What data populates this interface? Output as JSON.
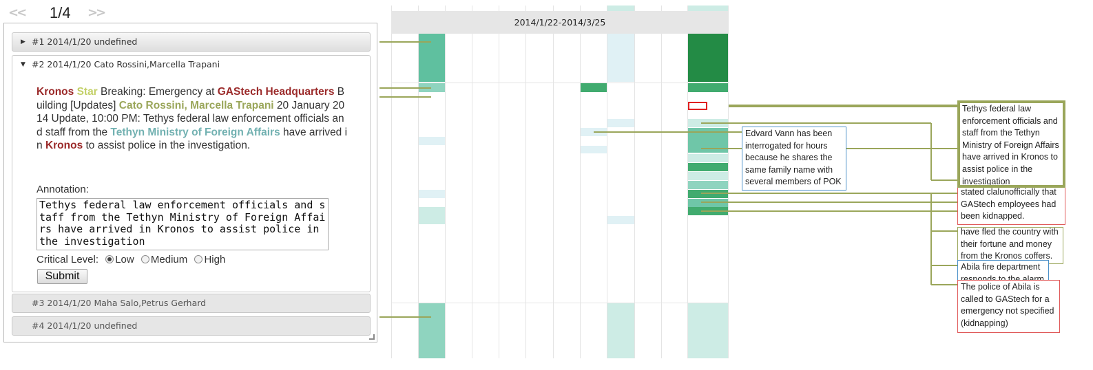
{
  "pager": {
    "prev": "<<",
    "page": "1/4",
    "next": ">>"
  },
  "accordion": {
    "items": [
      {
        "label": "#1 2014/1/20 undefined"
      },
      {
        "label": "#2 2014/1/20 Cato Rossini,Marcella Trapani"
      },
      {
        "label": "#3 2014/1/20 Maha Salo,Petrus Gerhard"
      },
      {
        "label": "#4 2014/1/20 undefined"
      }
    ]
  },
  "article": {
    "w1": "Kronos",
    "w2": " ",
    "w3": "Star",
    "w4": " Breaking: Emergency at ",
    "w5": "GAStech Headquarters",
    "w6": " Building [Updates] ",
    "w7": "Cato Rossini",
    "w8": ", ",
    "w9": "Marcella Trapani",
    "w10": " 20 January 2014 Update, 10:00 PM: Tethys federal law enforcement officials and staff from the ",
    "w11": "Tethyn Ministry of Foreign Affairs",
    "w12": " have arrived in ",
    "w13": "Kronos",
    "w14": " to assist police in the investigation."
  },
  "annotation": {
    "label": "Annotation:",
    "value": "Tethys federal law enforcement officials and staff from the Tethyn Ministry of Foreign Affairs have arrived in Kronos to assist police in the investigation",
    "critical_label": "Critical Level:",
    "levels": [
      "Low",
      "Medium",
      "High"
    ],
    "selected": "Low",
    "submit_label": "Submit"
  },
  "timeline": {
    "date_range": "2014/1/22-2014/3/25"
  },
  "notes": {
    "edvard": "Edvard Vann has been interrogated for hours because he shares the same family name with several members of POK",
    "tethys": "Tethys federal law enforcement officials and staff from the Tethyn Ministry of Foreign Affairs have arrived in Kronos to assist police in the investigation",
    "kidnapped": "stated clalunofficially that GAStech employees had been kidnapped.",
    "fled": "have fled the country with their fortune and money from the Kronos coffers.",
    "fire": "Abila fire department responds to the alarm",
    "police": "The police of Abila is called to GAStech for a emergency not specified (kidnapping)"
  },
  "colors": {
    "link_line": "#9aa65a",
    "highlight": "#e02020",
    "dark_green": "#238b45",
    "mid_green": "#41ab6f",
    "teal": "#5fc09f",
    "light_teal": "#cdece5",
    "pale_blue": "#e0f1f5"
  }
}
